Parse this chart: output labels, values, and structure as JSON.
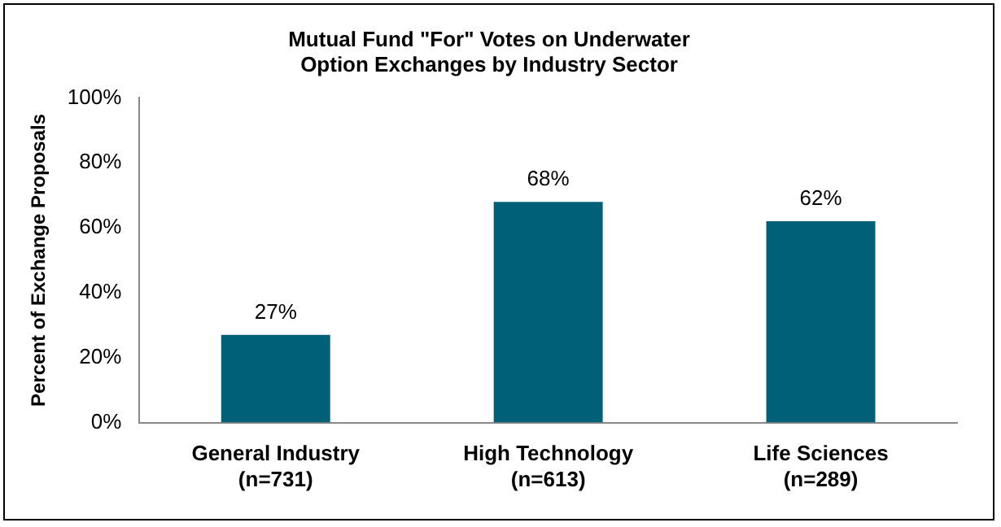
{
  "chart_data": {
    "type": "bar",
    "title": "Mutual Fund \"For\" Votes on Underwater\nOption Exchanges by Industry Sector",
    "ylabel": "Percent of Exchange Proposals",
    "categories": [
      "General Industry\n(n=731)",
      "High Technology\n(n=613)",
      "Life Sciences\n(n=289)"
    ],
    "values": [
      27,
      68,
      62
    ],
    "color": "#006078",
    "value_labels": [
      "27%",
      "68%",
      "62%"
    ],
    "ylim": [
      0,
      100
    ],
    "yticks": [
      {
        "value": 0,
        "label": "0%"
      },
      {
        "value": 20,
        "label": "20%"
      },
      {
        "value": 40,
        "label": "40%"
      },
      {
        "value": 60,
        "label": "60%"
      },
      {
        "value": 80,
        "label": "80%"
      },
      {
        "value": 100,
        "label": "100%"
      }
    ],
    "grid": false,
    "legend": false
  }
}
